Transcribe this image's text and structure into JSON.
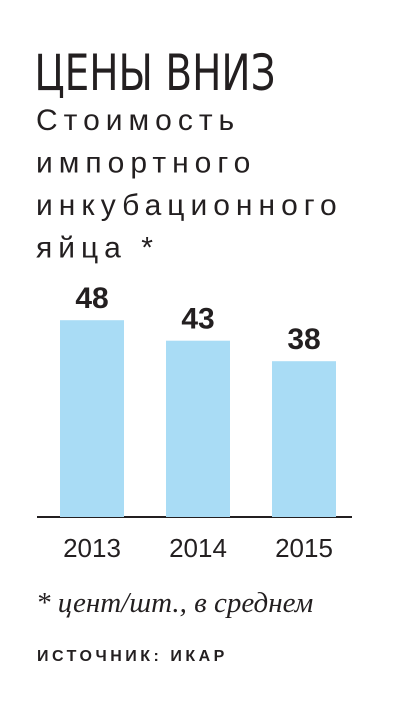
{
  "chart_data": {
    "type": "bar",
    "title": "ЦЕНЫ ВНИЗ",
    "subtitle": [
      "Стоимость",
      "импортного",
      "инкубационного",
      "яйца *"
    ],
    "categories": [
      "2013",
      "2014",
      "2015"
    ],
    "values": [
      48,
      43,
      38
    ],
    "color": "#a9dcf5",
    "note": "* цент/шт., в среднем",
    "source": "ИСТОЧНИК: ИКАР"
  }
}
